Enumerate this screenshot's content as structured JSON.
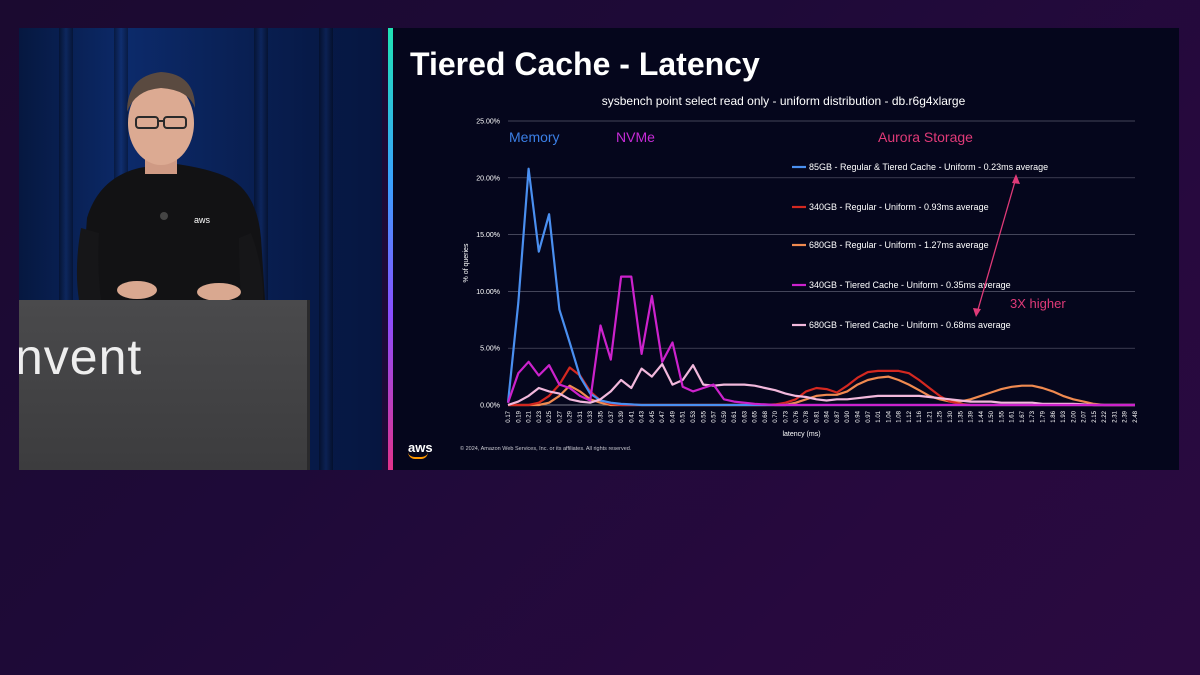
{
  "stage": {
    "podium_text": "nvent",
    "shirt_logo": "aws"
  },
  "slide": {
    "title": "Tiered Cache - Latency",
    "logo_text": "aws",
    "copyright": "© 2024, Amazon Web Services, Inc. or its affiliates. All rights reserved."
  },
  "colors": {
    "memory": "#3b7fe6",
    "nvme": "#c62bd6",
    "aurora": "#e03a78",
    "s85": "#4a8ff0",
    "s340r": "#d42820",
    "s680r": "#f08a50",
    "s340t": "#cc22cc",
    "s680t": "#f2b8dc"
  },
  "chart_data": {
    "type": "line",
    "title": "sysbench point select read only - uniform distribution - db.r6g4xlarge",
    "xlabel": "latency (ms)",
    "ylabel": "% of queries",
    "ylim": [
      0,
      25
    ],
    "yticks": [
      "0.00%",
      "5.00%",
      "10.00%",
      "15.00%",
      "20.00%",
      "25.00%"
    ],
    "grid": true,
    "legend_position": "inside-right",
    "categories": [
      "0.17",
      "0.19",
      "0.21",
      "0.23",
      "0.25",
      "0.27",
      "0.29",
      "0.31",
      "0.33",
      "0.35",
      "0.37",
      "0.39",
      "0.41",
      "0.43",
      "0.45",
      "0.47",
      "0.49",
      "0.51",
      "0.53",
      "0.55",
      "0.57",
      "0.59",
      "0.61",
      "0.63",
      "0.65",
      "0.68",
      "0.70",
      "0.73",
      "0.76",
      "0.78",
      "0.81",
      "0.84",
      "0.87",
      "0.90",
      "0.94",
      "0.97",
      "1.01",
      "1.04",
      "1.08",
      "1.12",
      "1.16",
      "1.21",
      "1.25",
      "1.30",
      "1.35",
      "1.39",
      "1.44",
      "1.50",
      "1.55",
      "1.61",
      "1.67",
      "1.73",
      "1.79",
      "1.86",
      "1.93",
      "2.00",
      "2.07",
      "2.15",
      "2.22",
      "2.31",
      "2.39",
      "2.48"
    ],
    "region_labels": [
      "Memory",
      "NVMe",
      "Aurora Storage"
    ],
    "annotation": "3X higher",
    "series": [
      {
        "name": "85GB - Regular & Tiered Cache - Uniform  - 0.23ms average",
        "color_key": "s85",
        "values": [
          0.2,
          9,
          20.8,
          13.5,
          16.8,
          8.4,
          5.5,
          2.5,
          1,
          0.4,
          0.2,
          0.1,
          0.05,
          0,
          0,
          0,
          0,
          0,
          0,
          0,
          0,
          0,
          0,
          0,
          0,
          0,
          0,
          0,
          0,
          0,
          0,
          0,
          0,
          0,
          0,
          0,
          0,
          0,
          0,
          0,
          0,
          0,
          0,
          0,
          0,
          0,
          0,
          0,
          0,
          0,
          0,
          0,
          0,
          0,
          0,
          0,
          0,
          0,
          0,
          0,
          0,
          0
        ]
      },
      {
        "name": "340GB - Regular - Uniform - 0.93ms average",
        "color_key": "s340r",
        "values": [
          0,
          0,
          0,
          0.2,
          0.8,
          1.8,
          3.3,
          2.6,
          1.2,
          0.4,
          0.1,
          0,
          0,
          0,
          0,
          0,
          0,
          0,
          0,
          0,
          0,
          0,
          0,
          0,
          0,
          0,
          0.05,
          0.2,
          0.5,
          1.2,
          1.5,
          1.4,
          1.1,
          1.7,
          2.4,
          2.9,
          3,
          3,
          3,
          2.8,
          2.2,
          1.5,
          0.8,
          0.3,
          0.1,
          0,
          0,
          0,
          0,
          0,
          0,
          0,
          0,
          0,
          0,
          0,
          0,
          0,
          0,
          0,
          0,
          0
        ]
      },
      {
        "name": "680GB - Regular - Uniform - 1.27ms average",
        "color_key": "s680r",
        "values": [
          0,
          0,
          0,
          0,
          0.2,
          0.8,
          1.7,
          1.2,
          0.5,
          0.2,
          0,
          0,
          0,
          0,
          0,
          0,
          0,
          0,
          0,
          0,
          0,
          0,
          0,
          0,
          0,
          0,
          0,
          0,
          0.2,
          0.5,
          0.8,
          0.9,
          0.9,
          1.2,
          1.8,
          2.2,
          2.4,
          2.5,
          2.2,
          1.8,
          1.3,
          0.8,
          0.5,
          0.3,
          0.3,
          0.5,
          0.8,
          1.1,
          1.4,
          1.6,
          1.7,
          1.7,
          1.5,
          1.2,
          0.8,
          0.5,
          0.3,
          0.1,
          0,
          0,
          0,
          0
        ]
      },
      {
        "name": "340GB - Tiered Cache - Uniform - 0.35ms average",
        "color_key": "s340t",
        "values": [
          0.2,
          2.8,
          3.8,
          2.6,
          3.5,
          1.8,
          1.5,
          0.8,
          0.4,
          7,
          4,
          11.3,
          11.3,
          4.5,
          9.6,
          3.8,
          5.5,
          1.6,
          1.2,
          1.5,
          1.8,
          0.5,
          0.3,
          0.2,
          0.1,
          0.05,
          0,
          0,
          0,
          0,
          0,
          0,
          0,
          0,
          0,
          0,
          0,
          0,
          0,
          0,
          0,
          0,
          0,
          0,
          0,
          0,
          0,
          0,
          0,
          0,
          0,
          0,
          0,
          0,
          0,
          0,
          0,
          0,
          0,
          0,
          0,
          0
        ]
      },
      {
        "name": "680GB - Tiered Cache - Uniform - 0.68ms average",
        "color_key": "s680t",
        "values": [
          0,
          0.3,
          0.8,
          1.5,
          1.2,
          1,
          0.5,
          0.3,
          0.2,
          0.5,
          1.2,
          2.2,
          1.5,
          3.2,
          2.5,
          3.6,
          1.8,
          2.2,
          3.5,
          1.8,
          1.7,
          1.8,
          1.8,
          1.8,
          1.7,
          1.5,
          1.3,
          1.0,
          0.8,
          0.7,
          0.5,
          0.4,
          0.5,
          0.5,
          0.6,
          0.7,
          0.8,
          0.8,
          0.8,
          0.8,
          0.8,
          0.7,
          0.6,
          0.5,
          0.4,
          0.3,
          0.3,
          0.3,
          0.2,
          0.2,
          0.2,
          0.2,
          0.1,
          0.1,
          0.1,
          0.1,
          0.05,
          0,
          0,
          0,
          0,
          0
        ]
      }
    ]
  }
}
